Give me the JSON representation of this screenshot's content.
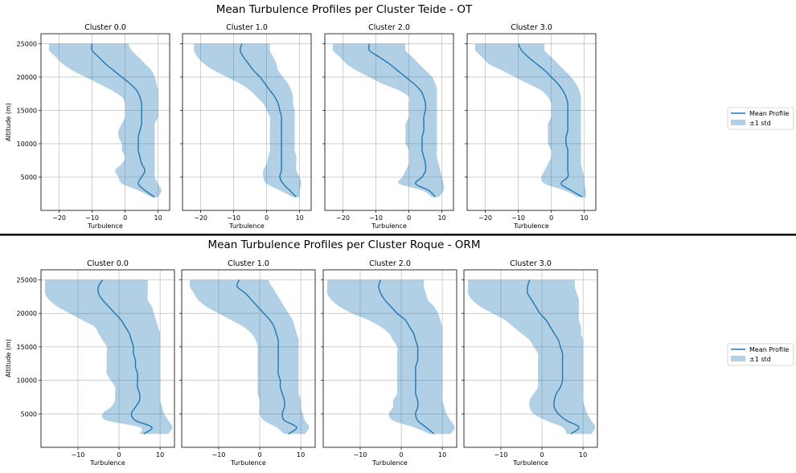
{
  "legend_labels": {
    "mean": "Mean Profile",
    "std": "±1 std"
  },
  "colors": {
    "mean_line": "#1f77b4",
    "std_fill": "#1f77b4",
    "grid": "#b0b0b0",
    "divider": "#000000"
  },
  "chart_data": [
    {
      "type": "line",
      "title": "Mean Turbulence Profiles per Cluster Teide - OT",
      "ylabel": "Altitude (m)",
      "xlabel": "Turbulence",
      "ylim": [
        0,
        26500
      ],
      "xlim": [
        -25.5,
        13.5
      ],
      "xticks": [
        -20,
        -10,
        0,
        10
      ],
      "yticks": [
        5000,
        10000,
        15000,
        20000,
        25000
      ],
      "grid": true,
      "legend_position": "right",
      "altitudes": [
        2000,
        3000,
        4000,
        5000,
        6000,
        7000,
        8000,
        9000,
        10000,
        11000,
        12000,
        13000,
        14000,
        15000,
        16000,
        17000,
        18000,
        19000,
        20000,
        21000,
        22000,
        23000,
        24000,
        25000
      ],
      "panels": [
        {
          "name": "Cluster 0.0",
          "mean": [
            9,
            6,
            4,
            5,
            6,
            5,
            4.5,
            4,
            4,
            4,
            4.5,
            5,
            5,
            5,
            5,
            4.5,
            3.5,
            1.5,
            -1,
            -3.5,
            -6,
            -8,
            -10,
            -10
          ],
          "lower": [
            8,
            4,
            -1,
            -2,
            -3,
            -1,
            0,
            -1,
            -1,
            -2,
            -2,
            -1,
            0,
            0,
            0,
            -1,
            -4,
            -8,
            -12,
            -16,
            -19,
            -21,
            -23,
            -23
          ],
          "upper": [
            10,
            11,
            10,
            9,
            9,
            9,
            9,
            9,
            9,
            9,
            9,
            9,
            10,
            10,
            10,
            10,
            10,
            9.5,
            9,
            8,
            6,
            4,
            2,
            1
          ]
        },
        {
          "name": "Cluster 1.0",
          "mean": [
            9,
            7,
            5,
            4,
            4.5,
            4.5,
            4.5,
            4.5,
            4.5,
            4.5,
            4.5,
            4.5,
            4.5,
            4,
            3.5,
            2.5,
            1,
            -0.5,
            -2,
            -4,
            -5.5,
            -7,
            -8,
            -7.5
          ],
          "lower": [
            8,
            4,
            0,
            -1,
            -1,
            0,
            0.5,
            1,
            1,
            1,
            1,
            1,
            1,
            0,
            -1,
            -3,
            -5,
            -8,
            -12,
            -16,
            -19,
            -21,
            -22,
            -22
          ],
          "upper": [
            10,
            10,
            10.5,
            10,
            9,
            9,
            9,
            8.5,
            8.5,
            8.5,
            8.5,
            8.5,
            8.5,
            8.5,
            8,
            8,
            7.5,
            6.5,
            5,
            3.5,
            3,
            2,
            1,
            1
          ]
        },
        {
          "name": "Cluster 2.0",
          "mean": [
            8,
            6,
            2,
            4,
            5,
            5,
            4.5,
            4,
            4,
            4,
            4.5,
            4.5,
            4.5,
            5,
            5,
            4.5,
            3.5,
            1.5,
            -1,
            -3.5,
            -6,
            -9,
            -12,
            -12
          ],
          "lower": [
            7,
            4,
            -3,
            -2,
            -1,
            0,
            0,
            0,
            -1,
            -1,
            -1,
            -1,
            0,
            0,
            0,
            0,
            -3,
            -8,
            -12,
            -16,
            -19,
            -21,
            -23,
            -23
          ],
          "upper": [
            9,
            10.5,
            10.5,
            10,
            9.5,
            9,
            8.5,
            8.5,
            8.5,
            8.5,
            8.5,
            8.5,
            8.5,
            8.5,
            8.5,
            8.5,
            8.5,
            8,
            7,
            5,
            3,
            1,
            -1,
            -1
          ]
        },
        {
          "name": "Cluster 3.0",
          "mean": [
            9.5,
            6,
            3,
            5,
            5,
            5,
            5,
            5,
            4.5,
            4.5,
            5,
            5,
            5,
            5,
            5,
            4.5,
            3.5,
            2,
            0,
            -2,
            -4.5,
            -7,
            -9,
            -10
          ],
          "lower": [
            8,
            4,
            -2,
            -3,
            -2,
            -1,
            0,
            0,
            -1,
            -1,
            -1,
            -1,
            0,
            0,
            0,
            -1,
            -3,
            -7,
            -11,
            -15,
            -19,
            -21,
            -23,
            -23
          ],
          "upper": [
            10.5,
            10.5,
            10,
            10,
            9.5,
            9,
            9,
            9,
            9,
            9,
            9,
            9,
            9,
            9,
            9,
            9,
            8.5,
            7.5,
            6,
            4,
            2,
            0,
            -2,
            -2
          ]
        }
      ]
    },
    {
      "type": "line",
      "title": "Mean Turbulence Profiles per Cluster Roque - ORM",
      "ylabel": "Altitude (m)",
      "xlabel": "Turbulence",
      "ylim": [
        0,
        26500
      ],
      "xlim": [
        -19,
        13.5
      ],
      "xticks": [
        -10,
        0,
        10
      ],
      "yticks": [
        5000,
        10000,
        15000,
        20000,
        25000
      ],
      "grid": true,
      "legend_position": "right",
      "altitudes": [
        2000,
        3000,
        4000,
        5000,
        6000,
        7000,
        8000,
        9000,
        10000,
        11000,
        12000,
        13000,
        14000,
        15000,
        16000,
        17000,
        18000,
        19000,
        20000,
        21000,
        22000,
        23000,
        24000,
        25000
      ],
      "panels": [
        {
          "name": "Cluster 0.0",
          "mean": [
            6,
            8,
            4,
            3,
            4,
            5,
            5,
            4.5,
            4.5,
            4.5,
            4,
            4,
            3.5,
            3.5,
            3,
            2.5,
            1.5,
            0.5,
            -1,
            -2.5,
            -4,
            -5,
            -5,
            -4
          ],
          "lower": [
            5,
            5,
            -3,
            -4,
            -2,
            -1,
            -1,
            -1,
            -2,
            -3,
            -3,
            -3,
            -3,
            -3,
            -4,
            -5,
            -6,
            -9,
            -12,
            -15,
            -17,
            -18,
            -18,
            -18
          ],
          "upper": [
            12,
            13,
            12,
            11,
            10.5,
            10,
            10,
            10,
            10,
            10,
            10,
            10,
            10,
            10,
            10,
            10,
            9.5,
            9,
            8.5,
            8,
            7,
            7,
            7,
            7
          ]
        },
        {
          "name": "Cluster 1.0",
          "mean": [
            7,
            9,
            6,
            5.5,
            6,
            6,
            5.5,
            5,
            5,
            4.5,
            4.5,
            4.5,
            4.5,
            4.5,
            4.5,
            4,
            3.5,
            2.5,
            1,
            -0.5,
            -2,
            -3.5,
            -5.5,
            -5
          ],
          "lower": [
            6,
            4,
            1,
            0,
            0,
            0,
            -0.5,
            -0.5,
            -0.5,
            -0.5,
            -0.5,
            -0.5,
            -0.5,
            -0.5,
            -1,
            -2,
            -4,
            -7,
            -10,
            -13,
            -15,
            -16,
            -17,
            -17
          ],
          "upper": [
            11,
            12,
            11,
            10.5,
            10,
            10,
            9.5,
            9.5,
            9.5,
            9.5,
            9.5,
            9.5,
            9.5,
            9.5,
            9.5,
            9,
            8.5,
            8,
            7,
            6,
            5,
            4,
            3,
            2
          ]
        },
        {
          "name": "Cluster 2.0",
          "mean": [
            8,
            6,
            4,
            3.5,
            4,
            4,
            3.5,
            3.5,
            3.5,
            3.5,
            3.5,
            4,
            4,
            4,
            3.5,
            3,
            2,
            1,
            -1,
            -2.5,
            -4,
            -5,
            -5.5,
            -5
          ],
          "lower": [
            7,
            3,
            -2,
            -3,
            -2,
            -2,
            -1,
            -1,
            -1,
            -1,
            -1,
            -1,
            -1,
            -1,
            -2,
            -3,
            -5,
            -8,
            -12,
            -15,
            -17,
            -18,
            -18,
            -18
          ],
          "upper": [
            12,
            13,
            12,
            11,
            10.5,
            10,
            10,
            10,
            10,
            10,
            10,
            10,
            10,
            10,
            10,
            10,
            10,
            9.5,
            9,
            8,
            6.5,
            6,
            5.5,
            5.5
          ]
        },
        {
          "name": "Cluster 3.0",
          "mean": [
            7,
            9,
            6,
            4,
            3,
            3,
            3.5,
            4.5,
            5,
            5,
            5,
            5,
            5,
            4.5,
            4,
            3,
            2,
            1,
            -0.5,
            -1.5,
            -2.5,
            -3.5,
            -3.5,
            -3
          ],
          "lower": [
            6,
            5,
            1,
            -2,
            -3,
            -3,
            -2,
            -1,
            -1,
            -1,
            -1,
            -1,
            -1,
            -2,
            -3,
            -5,
            -7,
            -9,
            -12,
            -15,
            -17,
            -18,
            -18,
            -18
          ],
          "upper": [
            12,
            13,
            12,
            11,
            10.5,
            10,
            10,
            10,
            10,
            10,
            10,
            10,
            10,
            10,
            10,
            9.5,
            9.5,
            9,
            9,
            9,
            9,
            8.5,
            8,
            8
          ]
        }
      ]
    }
  ]
}
